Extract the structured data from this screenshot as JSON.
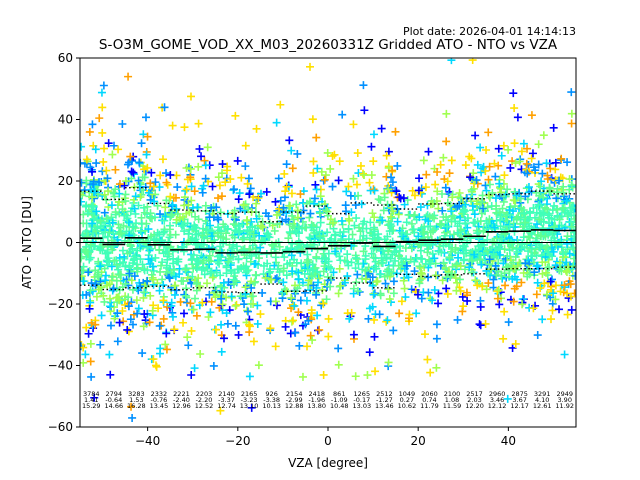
{
  "chart_data": {
    "type": "scatter",
    "title": "S-O3M_GOME_VOD_XX_M03_20260331Z Gridded ATO - NTO vs VZA",
    "plot_date": "Plot date: 2026-04-01 14:14:13",
    "xlabel": "VZA [degree]",
    "ylabel": "ATO - NTO [DU]",
    "xlim": [
      -55,
      55
    ],
    "ylim": [
      -60,
      60
    ],
    "xticks": [
      -40,
      -20,
      0,
      20,
      40
    ],
    "yticks": [
      -60,
      -40,
      -20,
      0,
      20,
      40,
      60
    ],
    "marker": "+",
    "colors": {
      "scatter": [
        "#0000ff",
        "#0090ff",
        "#00d8ff",
        "#40ffb8",
        "#60ff90",
        "#a0ff50",
        "#ffe000",
        "#ffa000"
      ],
      "mean_line": "#000000",
      "zero_line": "#000000"
    },
    "bins": {
      "x_center": [
        -52.5,
        -47.5,
        -42.5,
        -37.5,
        -32.5,
        -27.5,
        -22.5,
        -17.5,
        -12.5,
        -7.5,
        -2.5,
        2.5,
        7.5,
        12.5,
        17.5,
        22.5,
        27.5,
        32.5,
        37.5,
        42.5,
        47.5,
        52.5
      ],
      "count": [
        "3784",
        "2794",
        "3283",
        "2332",
        "2221",
        "2203",
        "2140",
        "2165",
        "926",
        "2154",
        "2418",
        "861",
        "1265",
        "2512",
        "1049",
        "2060",
        "2100",
        "2517",
        "2960",
        "2875",
        "3291",
        "2949"
      ],
      "mean": [
        "1.41",
        "-0.64",
        "1.53",
        "-0.76",
        "-2.40",
        "-2.20",
        "-3.37",
        "-3.23",
        "-3.38",
        "-2.99",
        "-1.96",
        "-1.09",
        "-0.17",
        "-1.27",
        "0.27",
        "0.74",
        "1.08",
        "2.03",
        "3.46",
        "3.67",
        "4.10",
        "3.90"
      ],
      "std": [
        "15.29",
        "14.66",
        "16.28",
        "13.45",
        "12.96",
        "12.52",
        "12.74",
        "13.10",
        "10.13",
        "12.88",
        "13.80",
        "10.48",
        "13.03",
        "13.46",
        "10.62",
        "11.79",
        "11.59",
        "12.20",
        "12.12",
        "12.17",
        "12.61",
        "11.92"
      ]
    }
  }
}
